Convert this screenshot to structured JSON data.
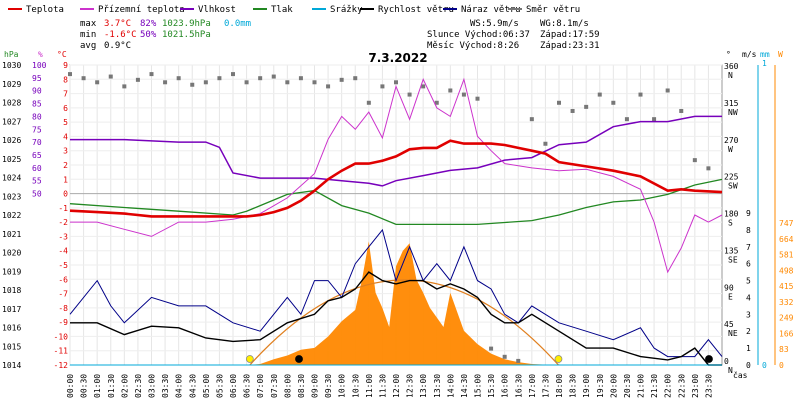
{
  "legend": [
    {
      "name": "Teplota",
      "color": "#e00000"
    },
    {
      "name": "Přízemní teplota",
      "color": "#cc33cc"
    },
    {
      "name": "Vlhkost",
      "color": "#7700bb"
    },
    {
      "name": "Tlak",
      "color": "#228822"
    },
    {
      "name": "Srážky",
      "color": "#00a8d8"
    },
    {
      "name": "Rychlost větru",
      "color": "#000000"
    },
    {
      "name": "Náraz větru",
      "color": "#000088"
    },
    {
      "name": "Směr větru",
      "color": "#777777"
    }
  ],
  "stats": {
    "max_label": "max",
    "max_temp": "3.7°C",
    "max_hum": "82%",
    "max_press": "1023.9hPa",
    "max_rain": "0.0mm",
    "min_label": "min",
    "min_temp": "-1.6°C",
    "min_hum": "50%",
    "min_press": "1021.5hPa",
    "avg_label": "avg",
    "avg_temp": "0.9°C"
  },
  "info": {
    "ws": "WS:5.9m/s",
    "wg": "WG:8.1m/s",
    "sun": "Slunce Východ:06:37",
    "sun_set": "Západ:17:59",
    "moon": "Měsíc  Východ:8:26",
    "moon_set": "Západ:23:31"
  },
  "colors": {
    "temp": "#e00000",
    "feel": "#cc33cc",
    "hum": "#7700bb",
    "press": "#228822",
    "rain": "#00a8d8",
    "wind": "#000000",
    "gust": "#000088",
    "dir": "#777777",
    "solar": "#ff8800",
    "sunpath": "#e08020"
  },
  "chart_data": {
    "type": "line",
    "title": "7.3.2022",
    "time_labels": [
      "00:00",
      "00:30",
      "01:00",
      "01:30",
      "02:00",
      "02:30",
      "03:00",
      "03:30",
      "04:00",
      "04:30",
      "05:00",
      "05:30",
      "06:00",
      "06:30",
      "07:00",
      "07:30",
      "08:00",
      "08:30",
      "09:00",
      "09:30",
      "10:00",
      "10:30",
      "11:00",
      "11:30",
      "12:00",
      "12:30",
      "13:00",
      "13:30",
      "14:00",
      "14:30",
      "15:00",
      "15:30",
      "16:00",
      "16:30",
      "17:00",
      "17:30",
      "18:00",
      "18:30",
      "19:00",
      "19:30",
      "20:00",
      "20:30",
      "21:00",
      "21:30",
      "22:00",
      "22:30",
      "23:00",
      "23:30"
    ],
    "axes": {
      "hpa": {
        "label": "hPa",
        "ticks": [
          "1030",
          "1029",
          "1028",
          "1027",
          "1026",
          "1025",
          "1024",
          "1023",
          "1022",
          "1021",
          "1020",
          "1019",
          "1018",
          "1017",
          "1016",
          "1015",
          "1014"
        ],
        "color": "#000000"
      },
      "pct": {
        "label": "%",
        "ticks": [
          "100",
          "95",
          "90",
          "85",
          "80",
          "75",
          "70",
          "65",
          "60",
          "55",
          "50"
        ],
        "color": "#7700bb"
      },
      "celsius": {
        "label": "°C",
        "ticks": [
          "9",
          "8",
          "7",
          "6",
          "5",
          "4",
          "3",
          "2",
          "1",
          "0",
          "-1",
          "-2",
          "-3",
          "-4",
          "-5",
          "-6",
          "-7",
          "-8",
          "-9",
          "-10",
          "-11",
          "-12"
        ],
        "color": "#e00000"
      },
      "direction": {
        "label": "°",
        "ticks": [
          "360",
          "315",
          "270",
          "225",
          "180",
          "135",
          "90",
          "45",
          "0"
        ],
        "compass": [
          "N",
          "NW",
          "W",
          "SW",
          "S",
          "SE",
          "E",
          "NE",
          "N"
        ]
      },
      "wind": {
        "label": "m/s",
        "ticks": [
          "9",
          "8",
          "7",
          "6",
          "5",
          "4",
          "3",
          "2",
          "1",
          "0"
        ]
      },
      "rain": {
        "label": "mm",
        "ticks": [
          "1",
          "0"
        ]
      },
      "solar": {
        "label": "W",
        "ticks": [
          "747",
          "664",
          "581",
          "498",
          "415",
          "332",
          "249",
          "166",
          "83",
          "0"
        ],
        "color": "#ff8800"
      },
      "time_label": "čas"
    },
    "series": [
      {
        "name": "Teplota",
        "unit": "°C",
        "x_hours": [
          0,
          1,
          2,
          3,
          4,
          5,
          6,
          6.5,
          7,
          7.5,
          8,
          8.5,
          9,
          9.5,
          10,
          10.5,
          11,
          11.5,
          12,
          12.5,
          13,
          13.5,
          14,
          14.5,
          15,
          15.5,
          16,
          16.5,
          17,
          17.5,
          18,
          19,
          20,
          21,
          22,
          22.5,
          23,
          24
        ],
        "values": [
          -1.2,
          -1.3,
          -1.4,
          -1.6,
          -1.6,
          -1.6,
          -1.6,
          -1.6,
          -1.5,
          -1.3,
          -1,
          -0.5,
          0.2,
          1,
          1.6,
          2.1,
          2.1,
          2.3,
          2.6,
          3.1,
          3.2,
          3.2,
          3.7,
          3.5,
          3.5,
          3.5,
          3.4,
          3.2,
          3,
          2.8,
          2.2,
          1.9,
          1.6,
          1.2,
          0.2,
          0.3,
          0.2,
          0.1
        ]
      },
      {
        "name": "Přízemní teplota",
        "unit": "°C",
        "x_hours": [
          0,
          1,
          2,
          3,
          4,
          5,
          6,
          7,
          8,
          9,
          9.5,
          10,
          10.5,
          11,
          11.5,
          12,
          12.5,
          13,
          13.5,
          14,
          14.5,
          15,
          15.5,
          16,
          17,
          18,
          19,
          20,
          21,
          21.5,
          22,
          22.5,
          23,
          23.5,
          24
        ],
        "values": [
          -2,
          -2,
          -2.5,
          -3,
          -2,
          -2,
          -1.8,
          -1.4,
          -0.3,
          1.4,
          3.8,
          5.4,
          4.5,
          5.7,
          3.9,
          7.5,
          5.2,
          8,
          6,
          5.4,
          8,
          4,
          3,
          2.1,
          1.8,
          1.6,
          1.7,
          1.2,
          0.3,
          -2,
          -5.5,
          -3.8,
          -1.5,
          -2,
          -1.5
        ]
      },
      {
        "name": "Vlhkost",
        "unit": "%",
        "x_hours": [
          0,
          2,
          4,
          5,
          5.5,
          6,
          7,
          8,
          9,
          10,
          11,
          11.5,
          12,
          13,
          14,
          15,
          16,
          17,
          18,
          19,
          20,
          21,
          22,
          23,
          24
        ],
        "values": [
          71,
          71,
          70,
          70,
          68,
          58,
          56,
          56,
          56,
          55,
          54,
          53,
          55,
          57,
          59,
          60,
          63,
          64,
          69,
          70,
          76,
          78,
          78,
          80,
          80
        ]
      },
      {
        "name": "Tlak",
        "unit": "hPa",
        "x_hours": [
          0,
          2,
          4,
          6,
          6.5,
          7,
          8,
          9,
          10,
          11,
          12,
          13,
          14,
          15,
          16,
          17,
          18,
          19,
          20,
          21,
          22,
          23,
          24
        ],
        "values": [
          1022.6,
          1022.4,
          1022.2,
          1022.0,
          1022.2,
          1022.5,
          1023.1,
          1023.3,
          1022.5,
          1022.1,
          1021.5,
          1021.5,
          1021.5,
          1021.5,
          1021.6,
          1021.7,
          1022.0,
          1022.4,
          1022.7,
          1022.8,
          1023.1,
          1023.6,
          1023.9
        ]
      },
      {
        "name": "Rychlost větru",
        "unit": "m/s",
        "x_hours": [
          0,
          1,
          2,
          3,
          4,
          5,
          6,
          7,
          8,
          9,
          9.5,
          10,
          10.5,
          11,
          11.5,
          12,
          12.5,
          13,
          13.5,
          14,
          14.5,
          15,
          15.5,
          16,
          16.5,
          17,
          18,
          19,
          20,
          21,
          22,
          22.5,
          23,
          23.5,
          24
        ],
        "values": [
          2.5,
          2.5,
          1.8,
          2.3,
          2.2,
          1.6,
          1.4,
          1.5,
          2.5,
          3,
          3.8,
          4,
          4.5,
          5.5,
          5,
          4.8,
          5,
          5,
          4.5,
          4.8,
          4.5,
          4,
          3,
          2.5,
          2.5,
          3,
          2,
          1,
          1,
          0.5,
          0.3,
          0.5,
          1,
          0,
          0
        ]
      },
      {
        "name": "Náraz větru",
        "unit": "m/s",
        "x_hours": [
          0,
          1,
          1.5,
          2,
          3,
          4,
          5,
          6,
          7,
          8,
          8.5,
          9,
          9.5,
          10,
          10.5,
          11,
          11.5,
          12,
          12.5,
          13,
          13.5,
          14,
          14.5,
          15,
          15.5,
          16,
          16.5,
          17,
          18,
          19,
          20,
          21,
          21.5,
          22,
          22.5,
          23,
          23.5,
          24
        ],
        "values": [
          3,
          5,
          3.5,
          2.5,
          4,
          3.5,
          3.5,
          2.5,
          2,
          4,
          3,
          5,
          5,
          4,
          6,
          7,
          8,
          5,
          7,
          5,
          6,
          5,
          7,
          5,
          4.5,
          3,
          2.5,
          3.5,
          2.5,
          2,
          1.5,
          2.2,
          1,
          0.5,
          0.5,
          0.5,
          1.5,
          0.5
        ]
      },
      {
        "name": "Srážky",
        "unit": "mm",
        "x_hours": [
          0,
          24
        ],
        "values": [
          0,
          0
        ]
      }
    ],
    "solar_radiation": {
      "name": "Solar",
      "unit": "W",
      "x_hours": [
        6.5,
        7,
        7.5,
        8,
        8.5,
        9,
        9.5,
        10,
        10.5,
        10.75,
        11,
        11.25,
        11.5,
        11.75,
        12,
        12.25,
        12.5,
        12.75,
        13,
        13.25,
        13.5,
        13.75,
        14,
        14.5,
        15,
        15.5,
        16,
        16.5,
        17,
        17.5,
        18
      ],
      "values": [
        0,
        5,
        30,
        50,
        80,
        90,
        150,
        230,
        290,
        450,
        650,
        380,
        300,
        200,
        520,
        600,
        640,
        450,
        380,
        300,
        250,
        200,
        380,
        180,
        110,
        60,
        30,
        15,
        5,
        2,
        0
      ]
    },
    "wind_direction": {
      "name": "Směr větru",
      "unit": "°",
      "x_hours": [
        0,
        0.5,
        1,
        1.5,
        2,
        2.5,
        3,
        3.5,
        4,
        4.5,
        5,
        5.5,
        6,
        6.5,
        7,
        7.5,
        8,
        8.5,
        9,
        9.5,
        10,
        10.5,
        11,
        11.5,
        12,
        12.5,
        13,
        13.5,
        14,
        14.5,
        15,
        15.5,
        16,
        16.5,
        17,
        17.5,
        18,
        18.5,
        19,
        19.5,
        20,
        20.5,
        21,
        21.5,
        22,
        22.5,
        23,
        23.5
      ],
      "values": [
        355,
        350,
        345,
        352,
        340,
        348,
        355,
        345,
        350,
        342,
        345,
        350,
        355,
        345,
        350,
        352,
        345,
        350,
        345,
        340,
        348,
        350,
        320,
        340,
        345,
        330,
        340,
        320,
        335,
        330,
        325,
        20,
        10,
        5,
        300,
        270,
        320,
        310,
        315,
        330,
        320,
        300,
        330,
        300,
        335,
        310,
        250,
        240
      ]
    },
    "sun_path": {
      "sunrise_hours": 6.62,
      "sunset_hours": 17.98,
      "peak_hours": 12.3
    },
    "sun_markers_hours": [
      6.62,
      17.98
    ],
    "moon_markers_hours": [
      8.43,
      23.52
    ],
    "ranges": {
      "celsius": [
        -12,
        9
      ],
      "hpa": [
        1014,
        1030
      ],
      "pct": [
        50,
        100
      ],
      "wind": [
        0,
        9
      ],
      "direction": [
        0,
        360
      ],
      "solar": [
        0,
        747
      ]
    },
    "grid": true,
    "legend_position": "top"
  }
}
